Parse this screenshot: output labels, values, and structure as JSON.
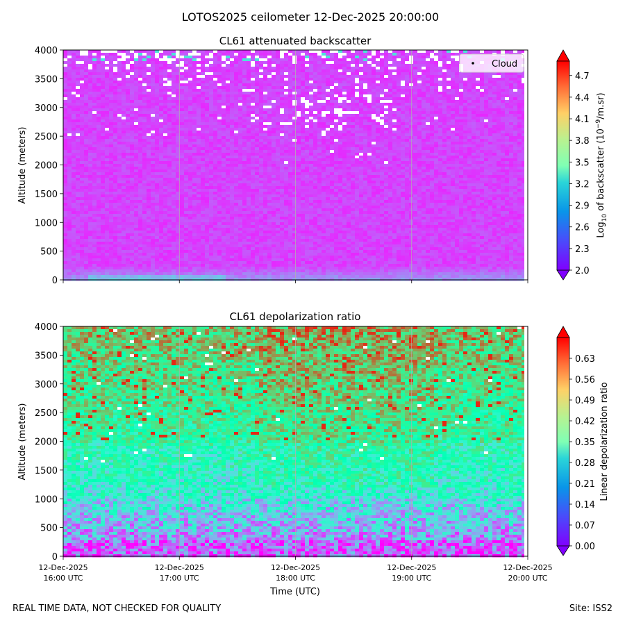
{
  "suptitle": "LOTOS2025 ceilometer 12-Dec-2025 20:00:00",
  "footer": {
    "left": "REAL TIME DATA, NOT CHECKED FOR QUALITY",
    "right": "Site: ISS2"
  },
  "chart_data": [
    {
      "type": "heatmap",
      "title": "CL61 attenuated backscatter",
      "ylabel": "Altitude (meters)",
      "xlabel": "",
      "ylim": [
        0,
        4000
      ],
      "yticks": [
        "0",
        "500",
        "1000",
        "1500",
        "2000",
        "2500",
        "3000",
        "3500",
        "4000"
      ],
      "x_hours": [
        16,
        17,
        18,
        19,
        20
      ],
      "colorbar": {
        "label_main": "Log",
        "label_sub": "10",
        "label_mid": " of backscatter (10",
        "label_sup": "−9",
        "label_end": "/m.sr)",
        "range": [
          2.0,
          4.9
        ],
        "colormap": "rainbow",
        "ticks": [
          "2.0",
          "2.3",
          "2.6",
          "2.9",
          "3.2",
          "3.5",
          "3.8",
          "4.1",
          "4.4",
          "4.7"
        ]
      },
      "legend": {
        "label": "Cloud",
        "position": "upper right"
      }
    },
    {
      "type": "heatmap",
      "title": "CL61 depolarization ratio",
      "ylabel": "Altitude (meters)",
      "xlabel": "Time (UTC)",
      "ylim": [
        0,
        4000
      ],
      "yticks": [
        "0",
        "500",
        "1000",
        "1500",
        "2000",
        "2500",
        "3000",
        "3500",
        "4000"
      ],
      "x_hours": [
        16,
        17,
        18,
        19,
        20
      ],
      "xtick_top": [
        "12-Dec-2025",
        "12-Dec-2025",
        "12-Dec-2025",
        "12-Dec-2025",
        "12-Dec-2025"
      ],
      "xtick_bottom": [
        "16:00 UTC",
        "17:00 UTC",
        "18:00 UTC",
        "19:00 UTC",
        "20:00 UTC"
      ],
      "colorbar": {
        "label": "Linear depolarization ratio",
        "range": [
          0.0,
          0.7
        ],
        "colormap": "rainbow",
        "ticks": [
          "0.00",
          "0.07",
          "0.14",
          "0.21",
          "0.28",
          "0.35",
          "0.42",
          "0.49",
          "0.56",
          "0.63"
        ]
      }
    }
  ]
}
